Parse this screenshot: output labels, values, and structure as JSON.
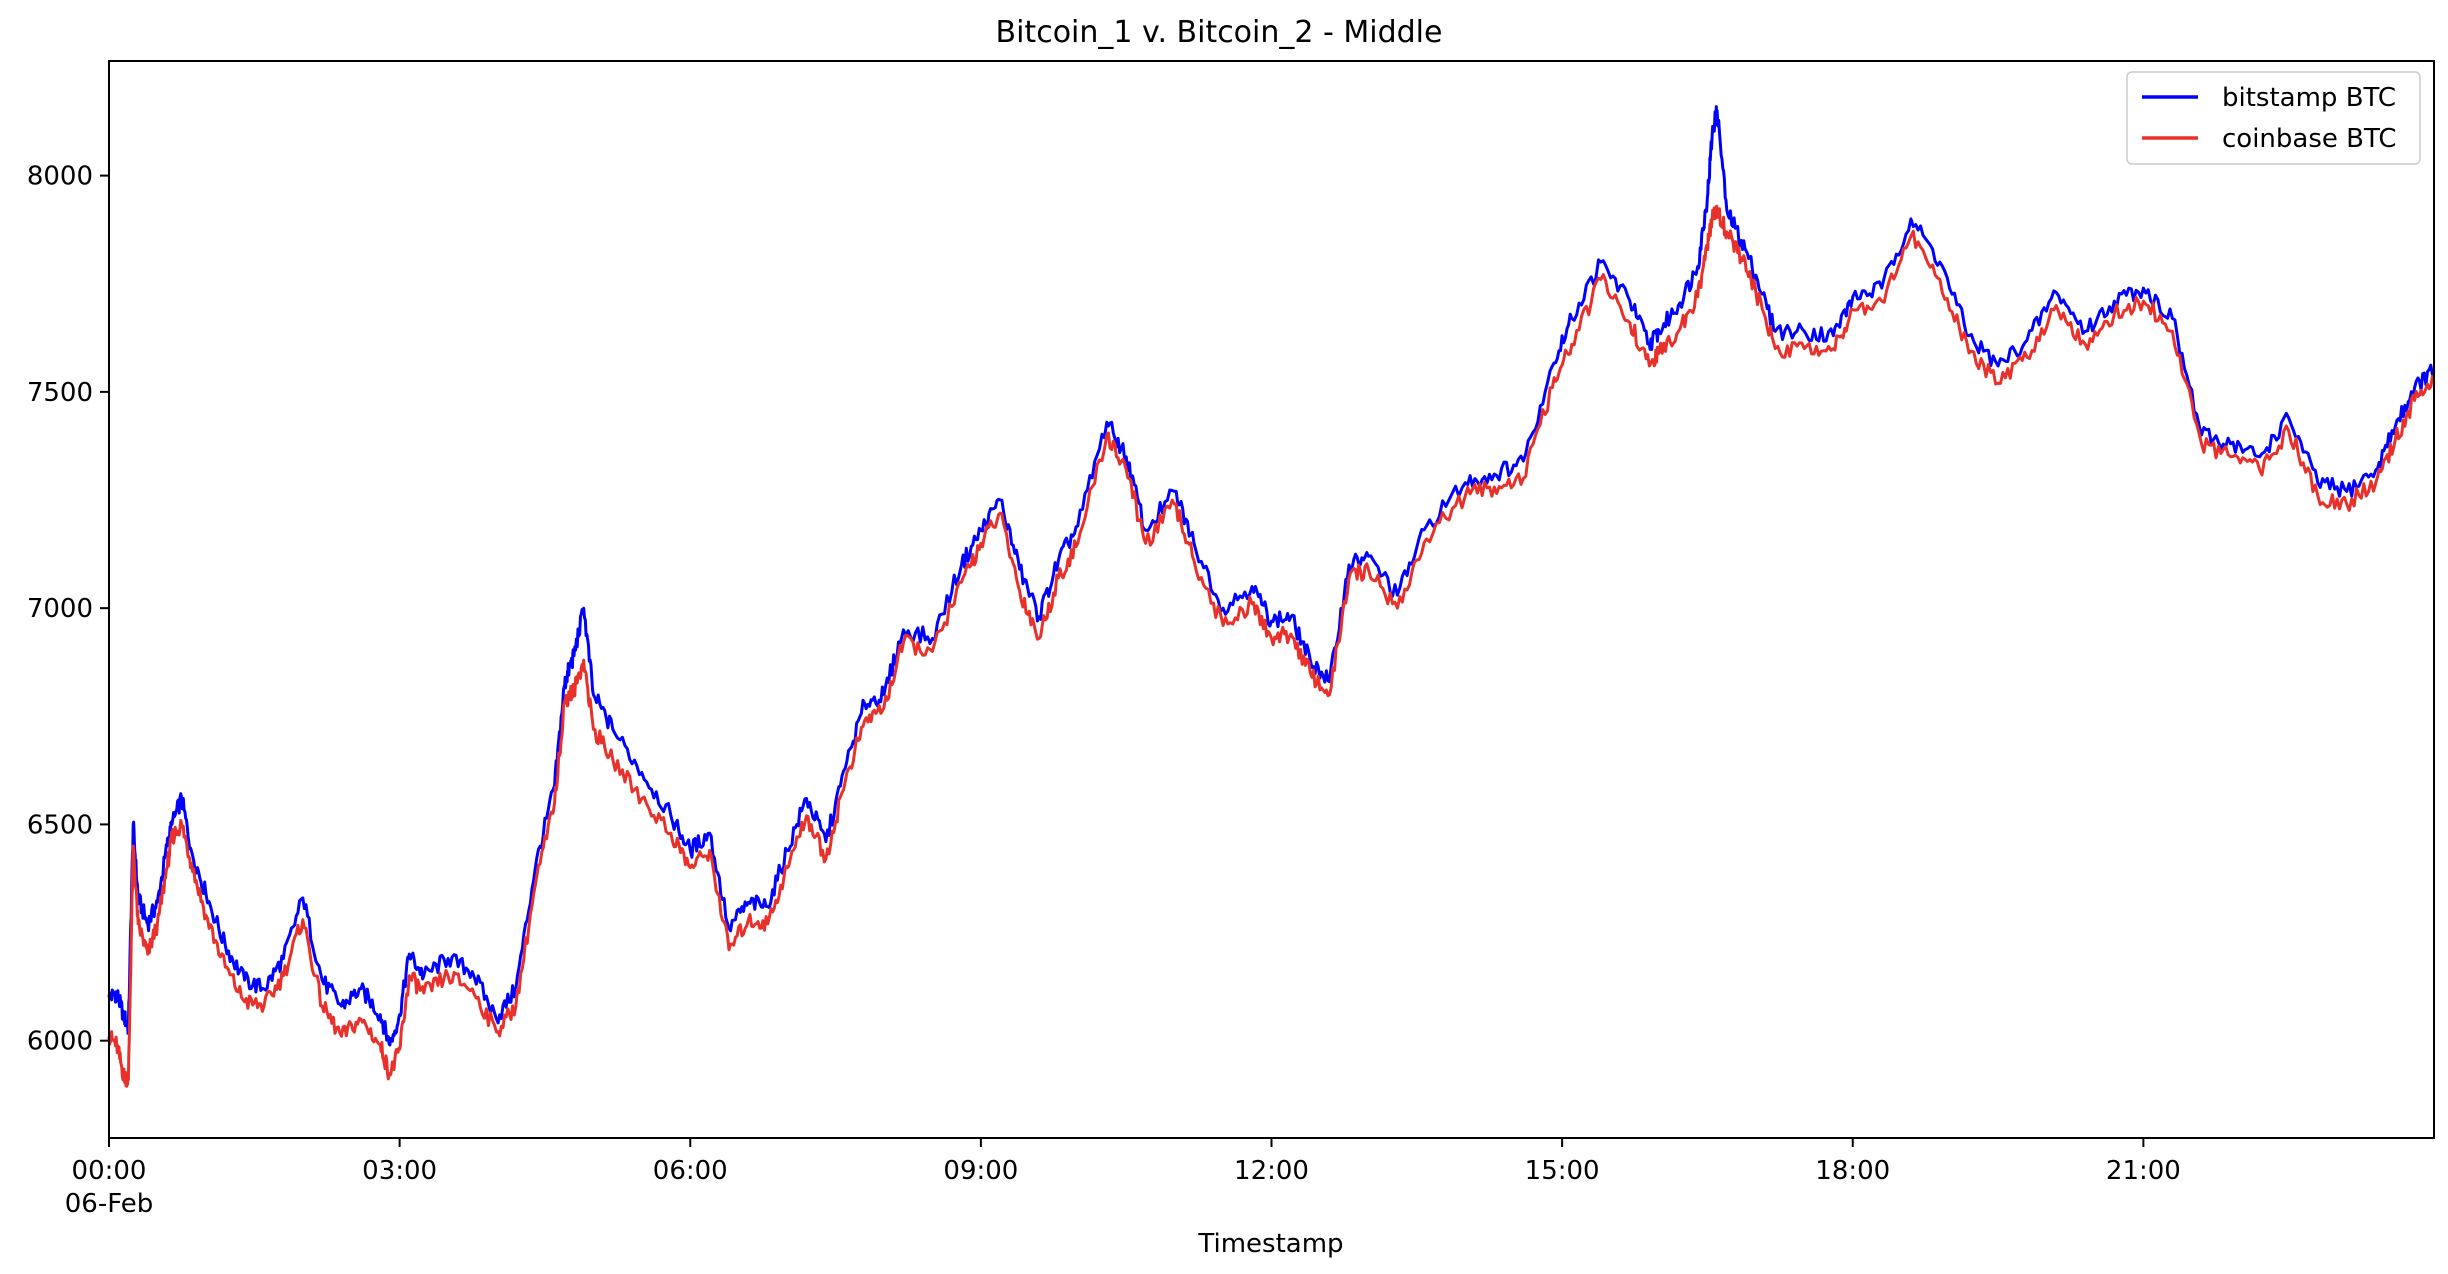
{
  "chart_data": {
    "type": "line",
    "title": "Bitcoin_1 v. Bitcoin_2 - Middle",
    "xlabel": "Timestamp",
    "ylabel": "",
    "date_label": "06-Feb",
    "x_ticks": [
      "00:00",
      "03:00",
      "06:00",
      "09:00",
      "12:00",
      "15:00",
      "18:00",
      "21:00"
    ],
    "x_tick_hours": [
      0,
      3,
      6,
      9,
      12,
      15,
      18,
      21
    ],
    "xlim_hours": [
      0,
      24
    ],
    "y_ticks": [
      6000,
      6500,
      7000,
      7500,
      8000
    ],
    "ylim": [
      5775,
      8265
    ],
    "legend_position": "top-right",
    "grid": false,
    "x_hours": [
      0,
      0.08,
      0.15,
      0.2,
      0.25,
      0.3,
      0.4,
      0.5,
      0.6,
      0.65,
      0.75,
      0.85,
      1.0,
      1.2,
      1.4,
      1.6,
      1.8,
      2.0,
      2.2,
      2.4,
      2.6,
      2.8,
      2.9,
      3.0,
      3.1,
      3.25,
      3.5,
      3.75,
      4.0,
      4.2,
      4.4,
      4.6,
      4.7,
      4.75,
      4.8,
      4.9,
      5.0,
      5.2,
      5.5,
      5.8,
      6.0,
      6.2,
      6.4,
      6.6,
      6.8,
      7.0,
      7.2,
      7.4,
      7.6,
      7.8,
      8.0,
      8.2,
      8.5,
      8.8,
      9.0,
      9.2,
      9.4,
      9.6,
      9.8,
      10.0,
      10.3,
      10.5,
      10.7,
      11.0,
      11.2,
      11.5,
      11.8,
      12.0,
      12.2,
      12.4,
      12.6,
      12.8,
      13.0,
      13.3,
      13.6,
      14.0,
      14.3,
      14.6,
      14.9,
      15.1,
      15.4,
      15.7,
      15.9,
      16.0,
      16.2,
      16.4,
      16.5,
      16.55,
      16.6,
      16.7,
      16.85,
      17.0,
      17.2,
      17.5,
      17.8,
      18.0,
      18.3,
      18.6,
      18.9,
      19.2,
      19.5,
      19.8,
      20.1,
      20.4,
      20.7,
      21.0,
      21.3,
      21.6,
      21.9,
      22.2,
      22.5,
      22.8,
      23.1,
      23.4,
      23.6,
      23.8,
      24.0
    ],
    "series": [
      {
        "name": "bitstamp BTC",
        "color": "#0000ff",
        "values": [
          6100,
          6110,
          6060,
          6030,
          6500,
          6330,
          6270,
          6320,
          6450,
          6500,
          6560,
          6440,
          6340,
          6220,
          6140,
          6120,
          6190,
          6330,
          6140,
          6080,
          6120,
          6060,
          5990,
          6060,
          6200,
          6150,
          6190,
          6160,
          6050,
          6120,
          6400,
          6590,
          6820,
          6860,
          6890,
          7000,
          6800,
          6720,
          6620,
          6520,
          6440,
          6480,
          6260,
          6320,
          6310,
          6440,
          6560,
          6460,
          6630,
          6780,
          6800,
          6950,
          6930,
          7100,
          7180,
          7250,
          7090,
          6980,
          7110,
          7190,
          7430,
          7350,
          7180,
          7270,
          7150,
          7000,
          7050,
          6970,
          6980,
          6880,
          6830,
          7100,
          7120,
          7030,
          7190,
          7290,
          7310,
          7340,
          7560,
          7670,
          7800,
          7710,
          7610,
          7640,
          7700,
          7790,
          7950,
          8100,
          8150,
          7920,
          7850,
          7770,
          7640,
          7640,
          7630,
          7720,
          7740,
          7900,
          7800,
          7630,
          7560,
          7620,
          7730,
          7640,
          7710,
          7740,
          7670,
          7400,
          7380,
          7350,
          7440,
          7290,
          7270,
          7320,
          7420,
          7510,
          7550
        ]
      },
      {
        "name": "coinbase BTC",
        "color": "#e8312a",
        "values": [
          6010,
          5990,
          5920,
          5910,
          6450,
          6270,
          6200,
          6270,
          6400,
          6470,
          6500,
          6410,
          6290,
          6170,
          6090,
          6080,
          6150,
          6280,
          6080,
          6010,
          6050,
          5990,
          5920,
          5980,
          6150,
          6110,
          6150,
          6120,
          6020,
          6080,
          6360,
          6550,
          6780,
          6800,
          6810,
          6880,
          6720,
          6650,
          6560,
          6480,
          6400,
          6440,
          6210,
          6280,
          6270,
          6400,
          6520,
          6420,
          6600,
          6740,
          6770,
          6920,
          6900,
          7060,
          7150,
          7220,
          7040,
          6930,
          7070,
          7150,
          7400,
          7320,
          7150,
          7240,
          7110,
          6960,
          7010,
          6930,
          6940,
          6850,
          6800,
          7070,
          7090,
          7000,
          7160,
          7260,
          7280,
          7300,
          7510,
          7610,
          7760,
          7660,
          7560,
          7590,
          7640,
          7720,
          7840,
          7900,
          7920,
          7870,
          7810,
          7730,
          7600,
          7600,
          7600,
          7690,
          7710,
          7860,
          7760,
          7590,
          7520,
          7580,
          7700,
          7610,
          7680,
          7710,
          7640,
          7380,
          7350,
          7320,
          7410,
          7260,
          7240,
          7290,
          7390,
          7480,
          7520
        ]
      }
    ]
  }
}
